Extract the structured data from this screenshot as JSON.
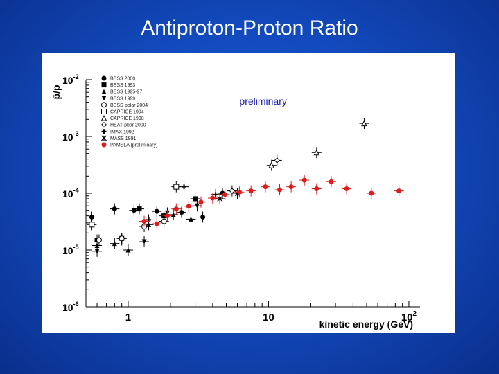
{
  "slide": {
    "title": "Antiproton-Proton Ratio"
  },
  "chart_data": {
    "type": "scatter",
    "title": "",
    "xlabel": "kinetic energy (GeV)",
    "ylabel": "p̄/p",
    "x_scale": "log",
    "y_scale": "log",
    "xlim": [
      0.5,
      120
    ],
    "ylim": [
      1e-06,
      0.01
    ],
    "x_ticks": [
      {
        "value": 1,
        "label": "1"
      },
      {
        "value": 10,
        "label": "10"
      },
      {
        "value": 100,
        "label": "10",
        "exp": "2"
      }
    ],
    "y_ticks": [
      {
        "value": 0.01,
        "label": "10",
        "exp": "-2"
      },
      {
        "value": 0.001,
        "label": "10",
        "exp": "-3"
      },
      {
        "value": 0.0001,
        "label": "10",
        "exp": "-4"
      },
      {
        "value": 1e-05,
        "label": "10",
        "exp": "-5"
      },
      {
        "value": 1e-06,
        "label": "10",
        "exp": "-6"
      }
    ],
    "grid": false,
    "legend_position": "top-left",
    "annotation": "preliminary",
    "annotation_color": "#1a1aa6",
    "series": [
      {
        "name": "BESS 2000",
        "marker": "circle-filled",
        "color": "#000000",
        "points": [
          [
            0.55,
            3.8e-05
          ],
          [
            0.8,
            5.3e-05
          ],
          [
            1.1,
            5e-05
          ],
          [
            1.6,
            4.8e-05
          ],
          [
            2.4,
            4.6e-05
          ],
          [
            3.4,
            3.8e-05
          ],
          [
            4.7,
            0.0001
          ]
        ]
      },
      {
        "name": "BESS 1993",
        "marker": "square-filled",
        "color": "#000000",
        "points": [
          [
            0.6,
            1.5e-05
          ],
          [
            0.9,
            1.6e-05
          ],
          [
            1.2,
            5.3e-05
          ],
          [
            1.8,
            4e-05
          ],
          [
            3.0,
            8e-05
          ]
        ]
      },
      {
        "name": "BESS 1995-97",
        "marker": "triangle-up-filled",
        "color": "#000000",
        "points": [
          [
            0.6,
            1.2e-05
          ],
          [
            0.8,
            1.3e-05
          ],
          [
            1.0,
            1e-05
          ],
          [
            1.4,
            2.8e-05
          ],
          [
            2.1,
            4.2e-05
          ],
          [
            2.8,
            3.5e-05
          ]
        ]
      },
      {
        "name": "BESS 1999",
        "marker": "triangle-down-filled",
        "color": "#000000",
        "points": [
          [
            0.6,
            9.5e-06
          ],
          [
            0.9,
            1.5e-05
          ],
          [
            1.3,
            1.4e-05
          ],
          [
            1.9,
            4.5e-05
          ],
          [
            3.1,
            6e-05
          ]
        ]
      },
      {
        "name": "BESS-polar 2004",
        "marker": "circle-open",
        "color": "#000000",
        "points": [
          [
            0.62,
            1.5e-05
          ],
          [
            0.9,
            1.6e-05
          ],
          [
            1.3,
            2.6e-05
          ],
          [
            1.8,
            3.2e-05
          ]
        ]
      },
      {
        "name": "CAPRICE 1994",
        "marker": "square-open",
        "color": "#000000",
        "points": [
          [
            0.55,
            2.8e-05
          ],
          [
            2.2,
            0.00013
          ]
        ]
      },
      {
        "name": "CAPRICE 1998",
        "marker": "triangle-up-open",
        "color": "#000000",
        "points": [
          [
            10.5,
            0.00031
          ],
          [
            22,
            0.00052
          ],
          [
            48,
            0.0017
          ]
        ]
      },
      {
        "name": "HEAT-pbar 2000",
        "marker": "diamond-open",
        "color": "#000000",
        "points": [
          [
            5.5,
            0.00011
          ],
          [
            11.5,
            0.00038
          ]
        ]
      },
      {
        "name": "IMAX 1992",
        "marker": "cross-open",
        "color": "#000000",
        "points": [
          [
            1.4,
            3.4e-05
          ],
          [
            2.5,
            0.00013
          ],
          [
            4.2,
            9.5e-05
          ]
        ]
      },
      {
        "name": "MASS 1991",
        "marker": "star",
        "color": "#000000",
        "points": [
          [
            4.5,
            8e-05
          ],
          [
            6.0,
            0.0001
          ]
        ]
      },
      {
        "name": "PAMELA (preliminary)",
        "marker": "circle-filled",
        "color": "#dd1c1c",
        "points": [
          [
            1.3,
            3.2e-05
          ],
          [
            1.6,
            2.9e-05
          ],
          [
            1.9,
            4e-05
          ],
          [
            2.2,
            5.3e-05
          ],
          [
            2.7,
            5.9e-05
          ],
          [
            3.3,
            7e-05
          ],
          [
            4.0,
            8.2e-05
          ],
          [
            4.9,
            9.5e-05
          ],
          [
            6.2,
            0.000105
          ],
          [
            7.5,
            0.00011
          ],
          [
            9.5,
            0.00013
          ],
          [
            12,
            0.000115
          ],
          [
            14.5,
            0.00013
          ],
          [
            18,
            0.00017
          ],
          [
            22,
            0.00012
          ],
          [
            28,
            0.00016
          ],
          [
            36,
            0.00012
          ],
          [
            54,
            0.0001
          ],
          [
            85,
            0.00011
          ]
        ]
      }
    ]
  }
}
